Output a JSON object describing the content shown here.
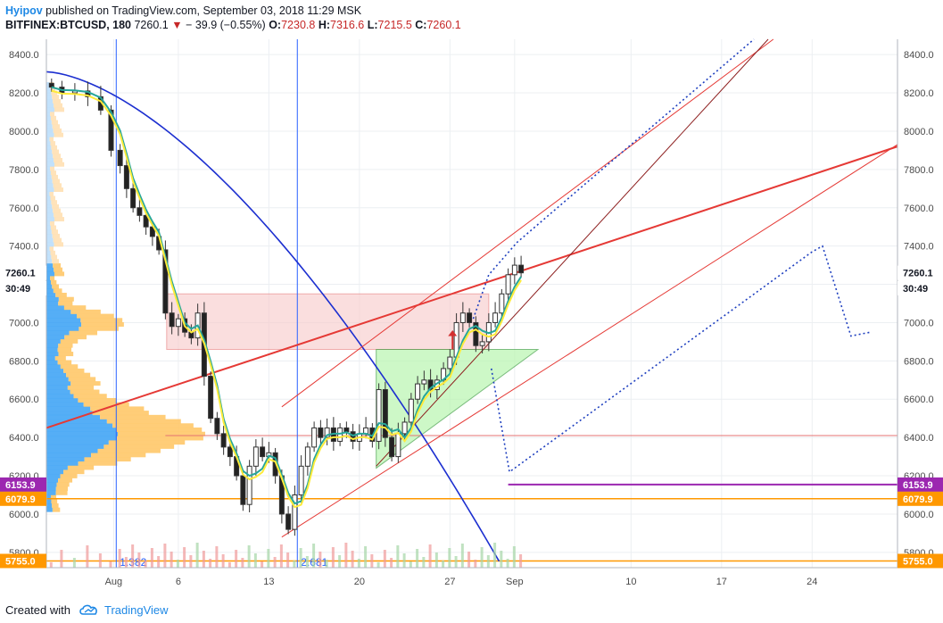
{
  "header": {
    "author": "Hyipov",
    "published_text": "published on TradingView.com, September 03, 2018 11:29 MSK",
    "symbol": "BITFINEX:BTCUSD, 180",
    "last": "7260.1",
    "change": "− 39.9 (−0.55%)",
    "o_label": "O:",
    "o_value": "7230.8",
    "h_label": "H:",
    "h_value": "7316.6",
    "l_label": "L:",
    "l_value": "7215.5",
    "c_label": "C:",
    "c_value": "7260.1"
  },
  "footer": {
    "created_with": "Created with",
    "brand": "TradingView"
  },
  "colors": {
    "up": "#535353",
    "down": "#222222",
    "red_line": "#e53935",
    "blue_line": "#1c2fd0",
    "fib": "#2962ff",
    "price_tag_purple": "#9c27b0",
    "price_tag_orange": "#ff9800",
    "volume_profile_blue": "#2196f3",
    "volume_profile_orange": "#ffb74d"
  },
  "chart_data": {
    "type": "candlestick",
    "y_ticks": [
      "8400.0",
      "8200.0",
      "8000.0",
      "7800.0",
      "7600.0",
      "7400.0",
      "7200.0",
      "7000.0",
      "6800.0",
      "6600.0",
      "6400.0",
      "6200.0",
      "6000.0",
      "5800.0"
    ],
    "x_ticks": [
      {
        "label": "Aug",
        "day": 1
      },
      {
        "label": "6",
        "day": 6
      },
      {
        "label": "13",
        "day": 13
      },
      {
        "label": "20",
        "day": 20
      },
      {
        "label": "27",
        "day": 27
      },
      {
        "label": "Sep",
        "day": 32
      },
      {
        "label": "10",
        "day": 41
      },
      {
        "label": "17",
        "day": 48
      },
      {
        "label": "24",
        "day": 55
      }
    ],
    "y_range": [
      5720,
      8480
    ],
    "x_range_days": [
      -4.2,
      61.6
    ],
    "price_tags": [
      {
        "label": "7260.1",
        "value": 7260.1,
        "style": "last"
      },
      {
        "label": "30:49",
        "value": 7180,
        "style": "timer"
      },
      {
        "label": "6153.9",
        "value": 6153.9,
        "style": "purple"
      },
      {
        "label": "6079.9",
        "value": 6079.9,
        "style": "orange"
      },
      {
        "label": "5755.0",
        "value": 5755.0,
        "style": "orange"
      }
    ],
    "fib_labels": [
      {
        "label": "1.382",
        "day": 1.2
      },
      {
        "label": "2.681",
        "day": 15.2
      }
    ],
    "closes": [
      [
        -3.8,
        8230
      ],
      [
        -3,
        8200
      ],
      [
        -2,
        8210
      ],
      [
        -1,
        8180
      ],
      [
        0,
        8110
      ],
      [
        0.8,
        7900
      ],
      [
        1.5,
        7820
      ],
      [
        2,
        7700
      ],
      [
        2.5,
        7600
      ],
      [
        3,
        7560
      ],
      [
        3.5,
        7500
      ],
      [
        4,
        7450
      ],
      [
        4.5,
        7380
      ],
      [
        5,
        7050
      ],
      [
        5.5,
        6980
      ],
      [
        6,
        7020
      ],
      [
        6.5,
        6950
      ],
      [
        7,
        6920
      ],
      [
        7.5,
        7050
      ],
      [
        8,
        6720
      ],
      [
        8.5,
        6500
      ],
      [
        9,
        6420
      ],
      [
        9.5,
        6350
      ],
      [
        10,
        6300
      ],
      [
        10.5,
        6200
      ],
      [
        11,
        6050
      ],
      [
        11.5,
        6250
      ],
      [
        12,
        6350
      ],
      [
        12.5,
        6300
      ],
      [
        13,
        6320
      ],
      [
        13.5,
        6200
      ],
      [
        14,
        6000
      ],
      [
        14.5,
        5920
      ],
      [
        15,
        6100
      ],
      [
        15.5,
        6250
      ],
      [
        16,
        6350
      ],
      [
        16.5,
        6450
      ],
      [
        17,
        6400
      ],
      [
        17.5,
        6450
      ],
      [
        18,
        6380
      ],
      [
        18.5,
        6450
      ],
      [
        19,
        6430
      ],
      [
        19.5,
        6380
      ],
      [
        20,
        6420
      ],
      [
        20.5,
        6450
      ],
      [
        21,
        6380
      ],
      [
        21.5,
        6650
      ],
      [
        22,
        6400
      ],
      [
        22.5,
        6300
      ],
      [
        23,
        6420
      ],
      [
        23.5,
        6480
      ],
      [
        24,
        6600
      ],
      [
        24.5,
        6680
      ],
      [
        25,
        6700
      ],
      [
        25.5,
        6650
      ],
      [
        26,
        6700
      ],
      [
        26.5,
        6760
      ],
      [
        27,
        6820
      ],
      [
        27.5,
        7000
      ],
      [
        28,
        7050
      ],
      [
        28.5,
        7000
      ],
      [
        29,
        6880
      ],
      [
        29.5,
        6900
      ],
      [
        30,
        7000
      ],
      [
        30.5,
        7050
      ],
      [
        31,
        7150
      ],
      [
        31.5,
        7250
      ],
      [
        32,
        7300
      ],
      [
        32.5,
        7260
      ]
    ]
  }
}
